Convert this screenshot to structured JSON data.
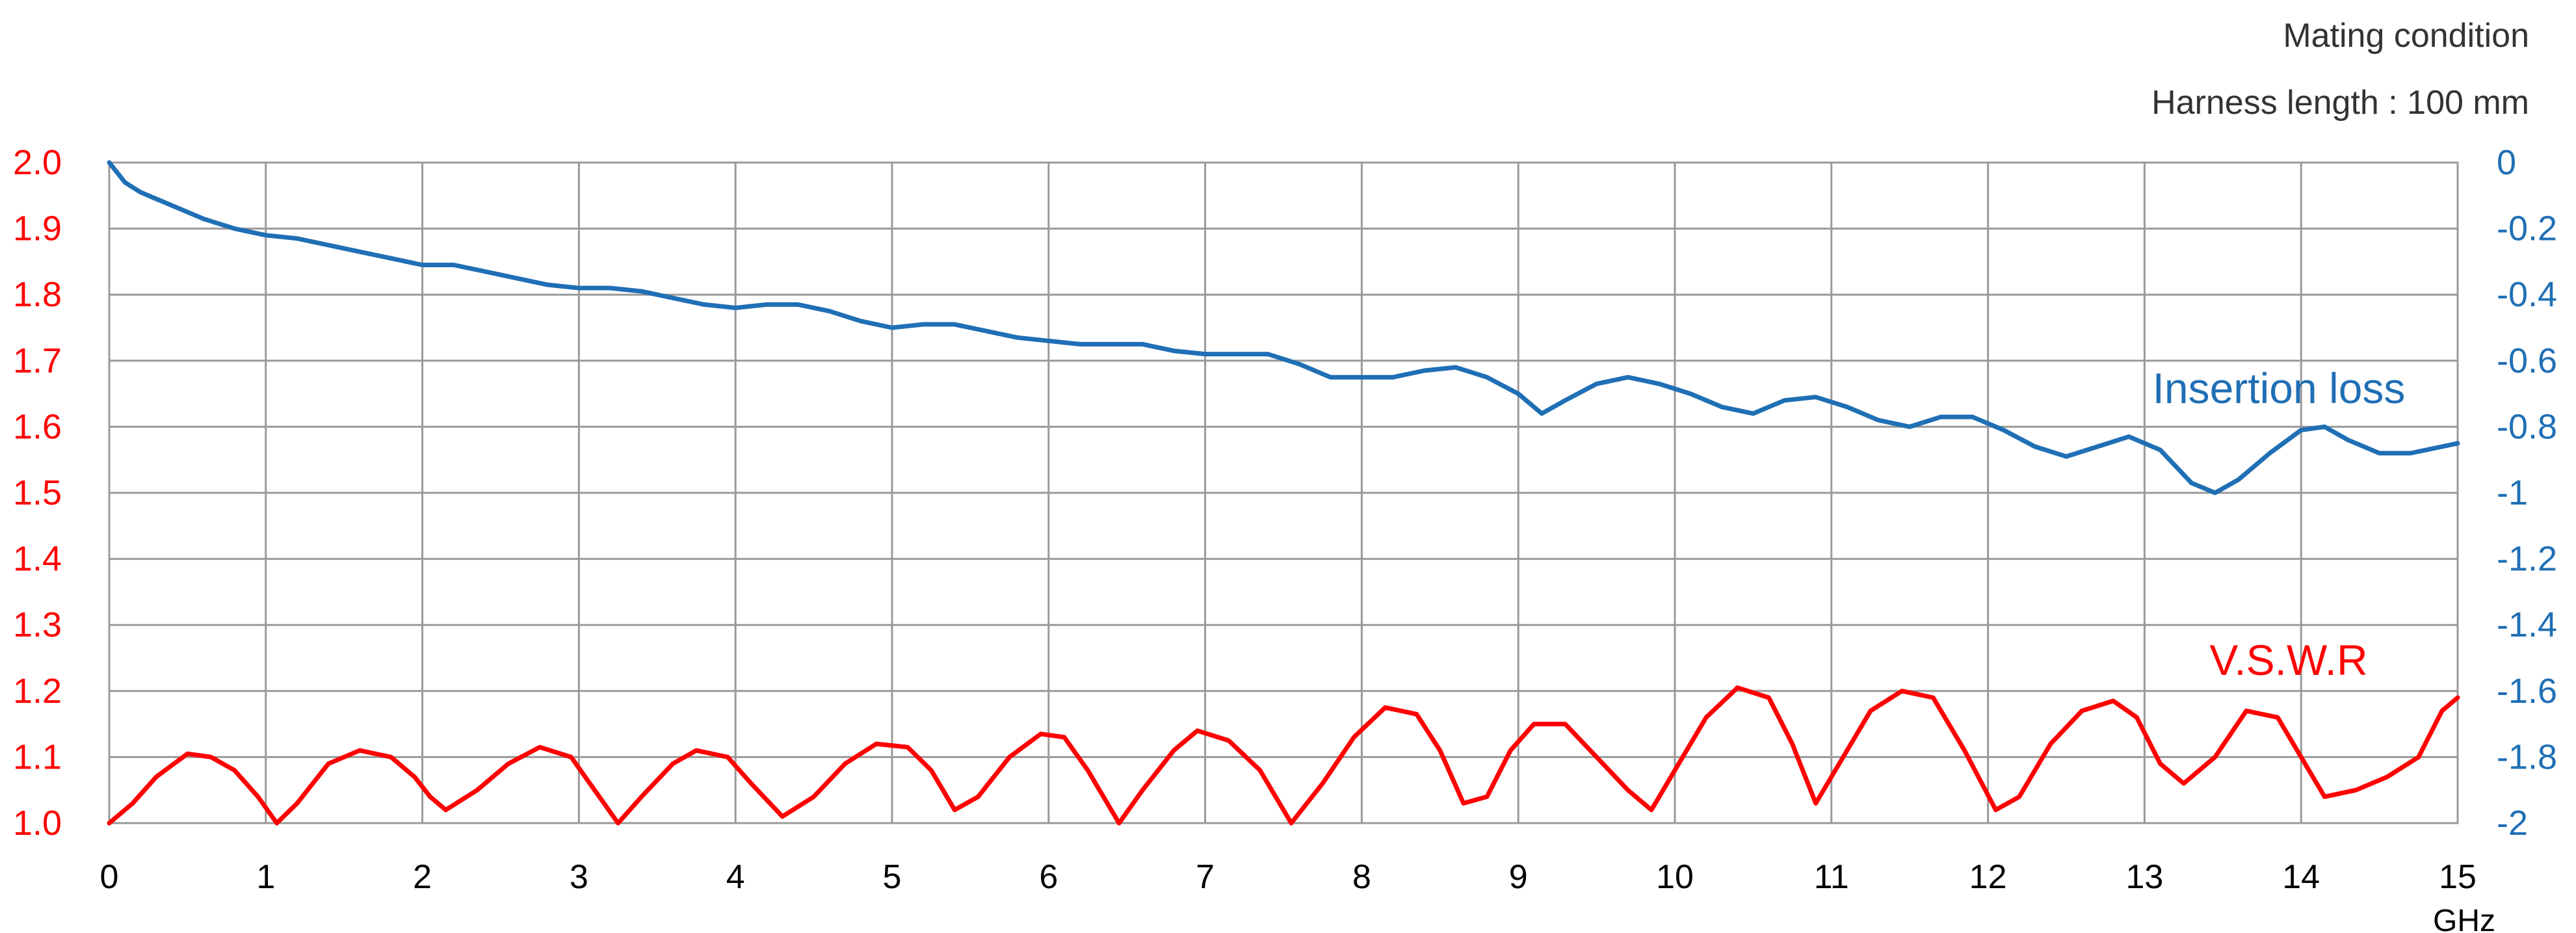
{
  "header": {
    "line1": "Mating condition",
    "line2": "Harness length : 100 mm"
  },
  "colors": {
    "left_axis": "#ff0000",
    "right_axis": "#1f6fb5",
    "vswr_series": "#ff0000",
    "insertion_loss_series": "#1f6fb5",
    "grid": "#9a9a9a",
    "text": "#333333"
  },
  "chart_data": {
    "type": "line",
    "title": "",
    "x_unit_label": "GHz",
    "x_range": [
      0,
      15
    ],
    "x_ticks": [
      "0",
      "1",
      "2",
      "3",
      "4",
      "5",
      "6",
      "7",
      "8",
      "9",
      "10",
      "11",
      "12",
      "13",
      "14",
      "15"
    ],
    "left_axis": {
      "range": [
        1.0,
        2.0
      ],
      "ticks": [
        "2.0",
        "1.9",
        "1.8",
        "1.7",
        "1.6",
        "1.5",
        "1.4",
        "1.3",
        "1.2",
        "1.1",
        "1.0"
      ]
    },
    "right_axis": {
      "range": [
        -2,
        0
      ],
      "ticks": [
        "0",
        "-0.2",
        "-0.4",
        "-0.6",
        "-0.8",
        "-1",
        "-1.2",
        "-1.4",
        "-1.6",
        "-1.8",
        "-2"
      ]
    },
    "grid": true,
    "series": [
      {
        "name": "Insertion loss",
        "axis": "right",
        "points": [
          [
            0,
            0.0
          ],
          [
            0.1,
            -0.06
          ],
          [
            0.2,
            -0.09
          ],
          [
            0.3,
            -0.11
          ],
          [
            0.4,
            -0.13
          ],
          [
            0.5,
            -0.15
          ],
          [
            0.6,
            -0.17
          ],
          [
            0.8,
            -0.2
          ],
          [
            1.0,
            -0.22
          ],
          [
            1.2,
            -0.23
          ],
          [
            1.4,
            -0.25
          ],
          [
            1.6,
            -0.27
          ],
          [
            1.8,
            -0.29
          ],
          [
            2.0,
            -0.31
          ],
          [
            2.2,
            -0.31
          ],
          [
            2.4,
            -0.33
          ],
          [
            2.6,
            -0.35
          ],
          [
            2.8,
            -0.37
          ],
          [
            3.0,
            -0.38
          ],
          [
            3.2,
            -0.38
          ],
          [
            3.4,
            -0.39
          ],
          [
            3.6,
            -0.41
          ],
          [
            3.8,
            -0.43
          ],
          [
            4.0,
            -0.44
          ],
          [
            4.2,
            -0.43
          ],
          [
            4.4,
            -0.43
          ],
          [
            4.6,
            -0.45
          ],
          [
            4.8,
            -0.48
          ],
          [
            5.0,
            -0.5
          ],
          [
            5.2,
            -0.49
          ],
          [
            5.4,
            -0.49
          ],
          [
            5.6,
            -0.51
          ],
          [
            5.8,
            -0.53
          ],
          [
            6.0,
            -0.54
          ],
          [
            6.2,
            -0.55
          ],
          [
            6.4,
            -0.55
          ],
          [
            6.6,
            -0.55
          ],
          [
            6.8,
            -0.57
          ],
          [
            7.0,
            -0.58
          ],
          [
            7.2,
            -0.58
          ],
          [
            7.4,
            -0.58
          ],
          [
            7.6,
            -0.61
          ],
          [
            7.8,
            -0.65
          ],
          [
            8.0,
            -0.65
          ],
          [
            8.2,
            -0.65
          ],
          [
            8.4,
            -0.63
          ],
          [
            8.6,
            -0.62
          ],
          [
            8.8,
            -0.65
          ],
          [
            9.0,
            -0.7
          ],
          [
            9.15,
            -0.76
          ],
          [
            9.3,
            -0.72
          ],
          [
            9.5,
            -0.67
          ],
          [
            9.7,
            -0.65
          ],
          [
            9.9,
            -0.67
          ],
          [
            10.1,
            -0.7
          ],
          [
            10.3,
            -0.74
          ],
          [
            10.5,
            -0.76
          ],
          [
            10.7,
            -0.72
          ],
          [
            10.9,
            -0.71
          ],
          [
            11.1,
            -0.74
          ],
          [
            11.3,
            -0.78
          ],
          [
            11.5,
            -0.8
          ],
          [
            11.7,
            -0.77
          ],
          [
            11.9,
            -0.77
          ],
          [
            12.1,
            -0.81
          ],
          [
            12.3,
            -0.86
          ],
          [
            12.5,
            -0.89
          ],
          [
            12.7,
            -0.86
          ],
          [
            12.9,
            -0.83
          ],
          [
            13.1,
            -0.87
          ],
          [
            13.3,
            -0.97
          ],
          [
            13.45,
            -1.0
          ],
          [
            13.6,
            -0.96
          ],
          [
            13.8,
            -0.88
          ],
          [
            14.0,
            -0.81
          ],
          [
            14.15,
            -0.8
          ],
          [
            14.3,
            -0.84
          ],
          [
            14.5,
            -0.88
          ],
          [
            14.7,
            -0.88
          ],
          [
            14.9,
            -0.86
          ],
          [
            15.0,
            -0.85
          ]
        ]
      },
      {
        "name": "V.S.W.R",
        "axis": "left",
        "points": [
          [
            0,
            1.0
          ],
          [
            0.15,
            1.03
          ],
          [
            0.3,
            1.07
          ],
          [
            0.5,
            1.105
          ],
          [
            0.65,
            1.1
          ],
          [
            0.8,
            1.08
          ],
          [
            0.95,
            1.04
          ],
          [
            1.07,
            1.0
          ],
          [
            1.2,
            1.03
          ],
          [
            1.4,
            1.09
          ],
          [
            1.6,
            1.11
          ],
          [
            1.8,
            1.1
          ],
          [
            1.95,
            1.07
          ],
          [
            2.05,
            1.04
          ],
          [
            2.15,
            1.02
          ],
          [
            2.35,
            1.05
          ],
          [
            2.55,
            1.09
          ],
          [
            2.75,
            1.115
          ],
          [
            2.95,
            1.1
          ],
          [
            3.1,
            1.05
          ],
          [
            3.25,
            1.0
          ],
          [
            3.4,
            1.04
          ],
          [
            3.6,
            1.09
          ],
          [
            3.75,
            1.11
          ],
          [
            3.95,
            1.1
          ],
          [
            4.1,
            1.06
          ],
          [
            4.3,
            1.01
          ],
          [
            4.5,
            1.04
          ],
          [
            4.7,
            1.09
          ],
          [
            4.9,
            1.12
          ],
          [
            5.1,
            1.115
          ],
          [
            5.25,
            1.08
          ],
          [
            5.4,
            1.02
          ],
          [
            5.55,
            1.04
          ],
          [
            5.75,
            1.1
          ],
          [
            5.95,
            1.135
          ],
          [
            6.1,
            1.13
          ],
          [
            6.25,
            1.08
          ],
          [
            6.45,
            1.0
          ],
          [
            6.6,
            1.05
          ],
          [
            6.8,
            1.11
          ],
          [
            6.95,
            1.14
          ],
          [
            7.15,
            1.125
          ],
          [
            7.35,
            1.08
          ],
          [
            7.55,
            1.0
          ],
          [
            7.75,
            1.06
          ],
          [
            7.95,
            1.13
          ],
          [
            8.15,
            1.175
          ],
          [
            8.35,
            1.165
          ],
          [
            8.5,
            1.11
          ],
          [
            8.65,
            1.03
          ],
          [
            8.8,
            1.04
          ],
          [
            8.95,
            1.11
          ],
          [
            9.1,
            1.15
          ],
          [
            9.3,
            1.15
          ],
          [
            9.5,
            1.1
          ],
          [
            9.7,
            1.05
          ],
          [
            9.85,
            1.02
          ],
          [
            10.0,
            1.08
          ],
          [
            10.2,
            1.16
          ],
          [
            10.4,
            1.205
          ],
          [
            10.6,
            1.19
          ],
          [
            10.75,
            1.12
          ],
          [
            10.9,
            1.03
          ],
          [
            11.05,
            1.09
          ],
          [
            11.25,
            1.17
          ],
          [
            11.45,
            1.2
          ],
          [
            11.65,
            1.19
          ],
          [
            11.85,
            1.11
          ],
          [
            12.05,
            1.02
          ],
          [
            12.2,
            1.04
          ],
          [
            12.4,
            1.12
          ],
          [
            12.6,
            1.17
          ],
          [
            12.8,
            1.185
          ],
          [
            12.95,
            1.16
          ],
          [
            13.1,
            1.09
          ],
          [
            13.25,
            1.06
          ],
          [
            13.45,
            1.1
          ],
          [
            13.65,
            1.17
          ],
          [
            13.85,
            1.16
          ],
          [
            14.0,
            1.1
          ],
          [
            14.15,
            1.04
          ],
          [
            14.35,
            1.05
          ],
          [
            14.55,
            1.07
          ],
          [
            14.75,
            1.1
          ],
          [
            14.9,
            1.17
          ],
          [
            15.0,
            1.19
          ]
        ]
      }
    ]
  }
}
